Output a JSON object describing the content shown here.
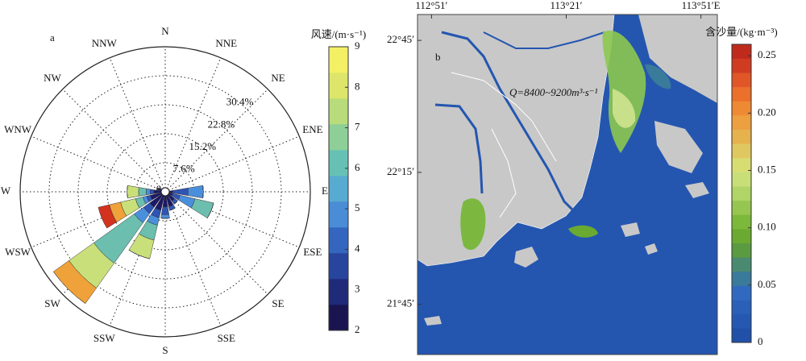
{
  "chart_data": [
    {
      "type": "windrose",
      "panel_label": "a",
      "categories": [
        "N",
        "NNE",
        "NE",
        "ENE",
        "E",
        "ESE",
        "SE",
        "SSE",
        "S",
        "SSW",
        "SW",
        "WSW",
        "W",
        "WNW",
        "NW",
        "NNW"
      ],
      "series": [
        {
          "color": "#1c1a66",
          "values": [
            1,
            1,
            1,
            1,
            2,
            2,
            3,
            4,
            4,
            5,
            5,
            4,
            3,
            2,
            1,
            1
          ]
        },
        {
          "color": "#2f55b4",
          "values": [
            0,
            0,
            0,
            0,
            4,
            2,
            1,
            1,
            2,
            2,
            2,
            1,
            1,
            0,
            0,
            0
          ]
        },
        {
          "color": "#4a8fdc",
          "values": [
            0,
            0,
            0,
            0,
            4,
            4,
            0,
            0,
            1,
            2,
            3,
            1,
            1,
            0,
            0,
            0
          ]
        },
        {
          "color": "#6cbfae",
          "values": [
            0,
            0,
            0,
            0,
            0,
            5,
            0,
            0,
            0,
            4,
            13,
            2,
            2,
            0,
            0,
            0
          ]
        },
        {
          "color": "#c9e07a",
          "values": [
            0,
            0,
            0,
            0,
            0,
            0,
            0,
            0,
            0,
            5,
            8,
            4,
            3,
            0,
            0,
            0
          ]
        },
        {
          "color": "#f0a23a",
          "values": [
            0,
            0,
            0,
            0,
            0,
            0,
            0,
            0,
            0,
            0,
            5,
            3,
            0,
            0,
            0,
            0
          ]
        },
        {
          "color": "#d2321e",
          "values": [
            0,
            0,
            0,
            0,
            0,
            0,
            0,
            0,
            0,
            0,
            0,
            3,
            0,
            0,
            0,
            0
          ]
        }
      ],
      "rlim": [
        0,
        38
      ],
      "rticks": [
        0,
        {
          "value": 7.6,
          "label": "7.6%"
        },
        {
          "value": 15.2,
          "label": "15.2%"
        },
        {
          "value": 22.8,
          "label": "22.8%"
        },
        {
          "value": 30.4,
          "label": "30.4%"
        }
      ],
      "colorbar": {
        "title": "风速/(m·s⁻¹)",
        "lim": [
          2,
          9
        ],
        "ticks": [
          2,
          3,
          4,
          5,
          6,
          7,
          8,
          9
        ],
        "colors": [
          "#1a1450",
          "#1f2a78",
          "#27459c",
          "#3466c0",
          "#4a8cd6",
          "#58abd0",
          "#66c1b4",
          "#8dcf96",
          "#b8dc7c",
          "#dde66a",
          "#f4f064"
        ]
      }
    },
    {
      "type": "map",
      "panel_label": "b",
      "annotation": "Q=8400~9200m³·s⁻¹",
      "xlim": [
        112.798,
        113.911
      ],
      "xticks": [
        {
          "value": 112.85,
          "label": "112°51′"
        },
        {
          "value": 113.35,
          "label": "113°21′"
        },
        {
          "value": 113.85,
          "label": "113°51′E"
        }
      ],
      "ylim": [
        21.56,
        22.848
      ],
      "yticks": [
        {
          "value": 22.75,
          "label": "22°45′"
        },
        {
          "value": 22.25,
          "label": "22°15′"
        },
        {
          "value": 21.75,
          "label": "21°45′"
        }
      ],
      "colorbar": {
        "title": "含沙量/(kg·m⁻³)",
        "lim": [
          0,
          0.26
        ],
        "ticks": [
          0,
          0.05,
          {
            "value": 0.1,
            "label": "0.10"
          },
          0.15,
          {
            "value": 0.2,
            "label": "0.20"
          },
          0.25
        ],
        "colors": [
          "#2150a8",
          "#2558b0",
          "#2a60b8",
          "#2f6ac0",
          "#3a7a9a",
          "#4a8a70",
          "#5a9a40",
          "#6aaa30",
          "#7cb83a",
          "#96c650",
          "#b0d466",
          "#c8df78",
          "#d8dd72",
          "#e0c860",
          "#e6b24e",
          "#eca040",
          "#ee8a34",
          "#ea702c",
          "#e05626",
          "#d03c22",
          "#c02a1c"
        ]
      }
    }
  ]
}
